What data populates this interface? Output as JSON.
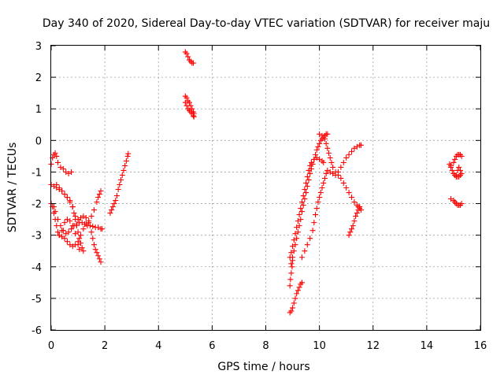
{
  "colors": {
    "series": "#ff0000",
    "grid": "#a0a0a0",
    "frame": "#000000"
  },
  "chart_data": {
    "type": "scatter",
    "title": "Day 340 of 2020, Sidereal Day-to-day VTEC variation (SDTVAR) for receiver maju",
    "xlabel": "GPS time / hours",
    "ylabel": "SDTVAR / TECUs",
    "xlim": [
      0,
      16
    ],
    "ylim": [
      -6,
      3
    ],
    "xticks": [
      0,
      2,
      4,
      6,
      8,
      10,
      12,
      14,
      16
    ],
    "yticks": [
      -6,
      -5,
      -4,
      -3,
      -2,
      -1,
      0,
      1,
      2,
      3
    ],
    "grid": true,
    "legend": "none",
    "marker": "plus",
    "series": [
      {
        "points": [
          [
            0.0,
            -0.75
          ],
          [
            0.05,
            -0.55
          ],
          [
            0.1,
            -0.45
          ],
          [
            0.15,
            -0.4
          ],
          [
            0.2,
            -0.5
          ],
          [
            0.25,
            -0.7
          ],
          [
            0.35,
            -0.85
          ],
          [
            0.45,
            -0.9
          ],
          [
            0.55,
            -1.0
          ],
          [
            0.65,
            -1.05
          ],
          [
            0.75,
            -1.0
          ]
        ]
      },
      {
        "points": [
          [
            0.0,
            -1.4
          ],
          [
            0.1,
            -1.45
          ],
          [
            0.2,
            -1.5
          ],
          [
            0.3,
            -1.55
          ],
          [
            0.4,
            -1.6
          ],
          [
            0.5,
            -1.7
          ],
          [
            0.6,
            -1.8
          ],
          [
            0.7,
            -1.95
          ],
          [
            0.8,
            -2.1
          ],
          [
            0.85,
            -2.3
          ],
          [
            0.9,
            -2.5
          ],
          [
            0.95,
            -2.7
          ],
          [
            1.0,
            -2.9
          ],
          [
            1.05,
            -3.1
          ],
          [
            1.1,
            -3.25
          ],
          [
            1.15,
            -3.4
          ],
          [
            1.2,
            -3.5
          ]
        ]
      },
      {
        "points": [
          [
            0.0,
            -2.0
          ],
          [
            0.05,
            -2.1
          ],
          [
            0.1,
            -2.3
          ],
          [
            0.15,
            -2.5
          ],
          [
            0.2,
            -2.7
          ],
          [
            0.25,
            -2.9
          ],
          [
            0.3,
            -3.0
          ],
          [
            0.4,
            -3.05
          ],
          [
            0.5,
            -3.1
          ],
          [
            0.6,
            -3.2
          ],
          [
            0.7,
            -3.3
          ],
          [
            0.8,
            -3.35
          ],
          [
            0.9,
            -3.3
          ],
          [
            1.0,
            -3.2
          ],
          [
            1.1,
            -3.0
          ],
          [
            1.2,
            -2.8
          ],
          [
            1.3,
            -2.65
          ],
          [
            1.4,
            -2.55
          ],
          [
            1.5,
            -2.4
          ],
          [
            1.6,
            -2.2
          ],
          [
            1.7,
            -1.95
          ],
          [
            1.75,
            -1.8
          ],
          [
            1.8,
            -1.7
          ],
          [
            1.85,
            -1.6
          ]
        ]
      },
      {
        "points": [
          [
            0.1,
            -2.1
          ],
          [
            0.15,
            -2.25
          ],
          [
            0.25,
            -2.5
          ],
          [
            0.35,
            -2.7
          ],
          [
            0.45,
            -2.85
          ],
          [
            0.55,
            -2.95
          ],
          [
            0.65,
            -2.9
          ],
          [
            0.75,
            -2.8
          ],
          [
            0.85,
            -2.7
          ],
          [
            0.95,
            -2.65
          ],
          [
            1.05,
            -2.6
          ],
          [
            1.15,
            -2.6
          ],
          [
            1.25,
            -2.65
          ],
          [
            1.35,
            -2.7
          ],
          [
            1.45,
            -2.7
          ],
          [
            1.55,
            -2.72
          ],
          [
            1.65,
            -2.75
          ],
          [
            1.75,
            -2.75
          ],
          [
            1.85,
            -2.8
          ],
          [
            1.9,
            -2.8
          ]
        ]
      },
      {
        "points": [
          [
            0.2,
            -1.4
          ],
          [
            0.3,
            -1.5
          ],
          [
            0.4,
            -1.6
          ],
          [
            0.5,
            -1.7
          ],
          [
            0.6,
            -1.8
          ],
          [
            0.7,
            -1.9
          ],
          [
            0.8,
            -2.1
          ],
          [
            0.9,
            -2.4
          ],
          [
            1.0,
            -2.5
          ],
          [
            1.1,
            -2.45
          ],
          [
            1.2,
            -2.4
          ],
          [
            1.3,
            -2.45
          ],
          [
            1.4,
            -2.6
          ],
          [
            1.5,
            -2.9
          ],
          [
            1.55,
            -3.1
          ],
          [
            1.6,
            -3.3
          ],
          [
            1.65,
            -3.45
          ],
          [
            1.7,
            -3.55
          ],
          [
            1.75,
            -3.65
          ],
          [
            1.8,
            -3.75
          ],
          [
            1.85,
            -3.85
          ]
        ]
      },
      {
        "points": [
          [
            0.3,
            -3.0
          ],
          [
            0.4,
            -2.85
          ],
          [
            0.5,
            -2.6
          ],
          [
            0.6,
            -2.5
          ],
          [
            0.7,
            -2.55
          ],
          [
            0.8,
            -2.7
          ],
          [
            0.9,
            -2.95
          ],
          [
            1.0,
            -3.3
          ],
          [
            1.05,
            -3.45
          ]
        ]
      },
      {
        "points": [
          [
            2.2,
            -2.3
          ],
          [
            2.25,
            -2.2
          ],
          [
            2.3,
            -2.1
          ],
          [
            2.35,
            -2.0
          ],
          [
            2.4,
            -1.9
          ],
          [
            2.45,
            -1.75
          ],
          [
            2.5,
            -1.55
          ],
          [
            2.55,
            -1.4
          ],
          [
            2.6,
            -1.25
          ],
          [
            2.65,
            -1.1
          ],
          [
            2.7,
            -0.95
          ],
          [
            2.75,
            -0.8
          ],
          [
            2.8,
            -0.65
          ],
          [
            2.85,
            -0.5
          ],
          [
            2.87,
            -0.42
          ]
        ]
      },
      {
        "points": [
          [
            5.0,
            2.8
          ],
          [
            5.05,
            2.75
          ],
          [
            5.1,
            2.65
          ],
          [
            5.15,
            2.55
          ],
          [
            5.2,
            2.5
          ],
          [
            5.25,
            2.45
          ],
          [
            5.3,
            2.45
          ]
        ]
      },
      {
        "points": [
          [
            5.0,
            1.4
          ],
          [
            5.05,
            1.35
          ],
          [
            5.1,
            1.25
          ],
          [
            5.15,
            1.2
          ],
          [
            5.2,
            1.1
          ],
          [
            5.25,
            1.0
          ],
          [
            5.3,
            0.9
          ],
          [
            5.32,
            0.85
          ]
        ]
      },
      {
        "points": [
          [
            5.0,
            1.2
          ],
          [
            5.05,
            1.1
          ],
          [
            5.1,
            1.0
          ],
          [
            5.15,
            0.95
          ],
          [
            5.2,
            0.9
          ],
          [
            5.25,
            0.85
          ],
          [
            5.3,
            0.78
          ],
          [
            5.32,
            0.75
          ]
        ]
      },
      {
        "points": [
          [
            8.9,
            -5.45
          ],
          [
            8.95,
            -5.4
          ],
          [
            9.0,
            -5.3
          ],
          [
            9.05,
            -5.15
          ],
          [
            9.1,
            -5.0
          ],
          [
            9.15,
            -4.85
          ],
          [
            9.2,
            -4.75
          ],
          [
            9.25,
            -4.65
          ],
          [
            9.3,
            -4.55
          ],
          [
            9.35,
            -4.5
          ]
        ]
      },
      {
        "points": [
          [
            8.9,
            -3.7
          ],
          [
            8.95,
            -3.55
          ],
          [
            9.0,
            -3.35
          ],
          [
            9.05,
            -3.15
          ],
          [
            9.1,
            -2.95
          ],
          [
            9.15,
            -2.75
          ],
          [
            9.2,
            -2.55
          ],
          [
            9.25,
            -2.35
          ],
          [
            9.3,
            -2.15
          ],
          [
            9.35,
            -1.95
          ],
          [
            9.4,
            -1.75
          ],
          [
            9.45,
            -1.55
          ],
          [
            9.5,
            -1.35
          ],
          [
            9.55,
            -1.15
          ],
          [
            9.6,
            -0.95
          ],
          [
            9.65,
            -0.8
          ],
          [
            9.7,
            -0.7
          ],
          [
            9.8,
            -0.6
          ],
          [
            9.9,
            -0.55
          ],
          [
            10.0,
            -0.6
          ],
          [
            10.1,
            -0.65
          ],
          [
            10.15,
            -0.7
          ]
        ]
      },
      {
        "points": [
          [
            8.95,
            -3.9
          ],
          [
            9.0,
            -3.7
          ],
          [
            9.05,
            -3.5
          ],
          [
            9.1,
            -3.3
          ],
          [
            9.15,
            -3.1
          ],
          [
            9.2,
            -2.9
          ],
          [
            9.25,
            -2.7
          ],
          [
            9.3,
            -2.5
          ],
          [
            9.35,
            -2.25
          ],
          [
            9.4,
            -2.05
          ],
          [
            9.45,
            -1.85
          ],
          [
            9.5,
            -1.65
          ],
          [
            9.55,
            -1.45
          ],
          [
            9.6,
            -1.25
          ],
          [
            9.65,
            -1.05
          ],
          [
            9.7,
            -0.9
          ],
          [
            9.75,
            -0.75
          ],
          [
            9.8,
            -0.6
          ],
          [
            9.85,
            -0.45
          ],
          [
            9.9,
            -0.3
          ],
          [
            9.95,
            -0.2
          ],
          [
            10.0,
            -0.1
          ],
          [
            10.05,
            0.0
          ],
          [
            10.1,
            0.05
          ],
          [
            10.15,
            0.1
          ],
          [
            10.2,
            0.15
          ],
          [
            10.25,
            0.2
          ],
          [
            10.3,
            0.2
          ]
        ]
      },
      {
        "points": [
          [
            8.9,
            -4.6
          ],
          [
            8.92,
            -4.4
          ],
          [
            8.95,
            -4.2
          ],
          [
            8.98,
            -4.0
          ],
          [
            9.0,
            -3.8
          ]
        ]
      },
      {
        "points": [
          [
            9.35,
            -3.7
          ],
          [
            9.45,
            -3.5
          ],
          [
            9.55,
            -3.3
          ],
          [
            9.65,
            -3.1
          ],
          [
            9.75,
            -2.85
          ],
          [
            9.8,
            -2.6
          ],
          [
            9.85,
            -2.35
          ],
          [
            9.9,
            -2.15
          ],
          [
            9.95,
            -1.95
          ],
          [
            10.0,
            -1.8
          ],
          [
            10.05,
            -1.65
          ],
          [
            10.1,
            -1.5
          ],
          [
            10.15,
            -1.35
          ],
          [
            10.2,
            -1.2
          ],
          [
            10.25,
            -1.05
          ],
          [
            10.3,
            -0.95
          ],
          [
            10.4,
            -1.0
          ],
          [
            10.5,
            -1.05
          ],
          [
            10.6,
            -1.1
          ],
          [
            10.7,
            -1.0
          ],
          [
            10.8,
            -0.85
          ],
          [
            10.9,
            -0.7
          ],
          [
            11.0,
            -0.55
          ],
          [
            11.1,
            -0.45
          ],
          [
            11.2,
            -0.35
          ],
          [
            11.3,
            -0.25
          ],
          [
            11.4,
            -0.2
          ],
          [
            11.5,
            -0.15
          ],
          [
            11.55,
            -0.15
          ]
        ]
      },
      {
        "points": [
          [
            10.0,
            0.2
          ],
          [
            10.1,
            0.15
          ],
          [
            10.2,
            0.05
          ],
          [
            10.25,
            -0.1
          ],
          [
            10.3,
            -0.25
          ],
          [
            10.35,
            -0.4
          ],
          [
            10.4,
            -0.55
          ],
          [
            10.45,
            -0.7
          ],
          [
            10.5,
            -0.85
          ],
          [
            10.6,
            -1.0
          ],
          [
            10.7,
            -1.1
          ],
          [
            10.8,
            -1.2
          ],
          [
            10.9,
            -1.35
          ],
          [
            11.0,
            -1.5
          ],
          [
            11.1,
            -1.65
          ],
          [
            11.2,
            -1.8
          ],
          [
            11.3,
            -1.95
          ],
          [
            11.4,
            -2.05
          ],
          [
            11.45,
            -2.1
          ],
          [
            11.5,
            -2.15
          ],
          [
            11.55,
            -2.2
          ]
        ]
      },
      {
        "points": [
          [
            11.1,
            -3.0
          ],
          [
            11.15,
            -2.9
          ],
          [
            11.2,
            -2.8
          ],
          [
            11.25,
            -2.7
          ],
          [
            11.3,
            -2.55
          ],
          [
            11.35,
            -2.4
          ],
          [
            11.4,
            -2.3
          ],
          [
            11.45,
            -2.2
          ],
          [
            11.5,
            -2.1
          ]
        ]
      },
      {
        "points": [
          [
            14.85,
            -0.75
          ],
          [
            14.9,
            -0.85
          ],
          [
            14.95,
            -0.95
          ],
          [
            15.0,
            -1.05
          ],
          [
            15.05,
            -1.1
          ],
          [
            15.1,
            -1.15
          ],
          [
            15.15,
            -1.15
          ],
          [
            15.2,
            -1.15
          ],
          [
            15.25,
            -1.1
          ]
        ]
      },
      {
        "points": [
          [
            14.9,
            -0.8
          ],
          [
            15.0,
            -0.7
          ],
          [
            15.05,
            -0.6
          ],
          [
            15.1,
            -0.5
          ],
          [
            15.15,
            -0.45
          ],
          [
            15.2,
            -0.45
          ],
          [
            15.25,
            -0.45
          ],
          [
            15.3,
            -0.5
          ]
        ]
      },
      {
        "points": [
          [
            15.1,
            -1.1
          ],
          [
            15.15,
            -0.95
          ],
          [
            15.2,
            -0.85
          ],
          [
            15.25,
            -0.95
          ],
          [
            15.3,
            -1.05
          ]
        ]
      },
      {
        "points": [
          [
            14.9,
            -1.85
          ],
          [
            15.0,
            -1.9
          ],
          [
            15.05,
            -1.95
          ],
          [
            15.1,
            -2.0
          ],
          [
            15.15,
            -2.05
          ],
          [
            15.2,
            -2.05
          ],
          [
            15.25,
            -2.05
          ],
          [
            15.3,
            -2.0
          ]
        ]
      }
    ]
  }
}
